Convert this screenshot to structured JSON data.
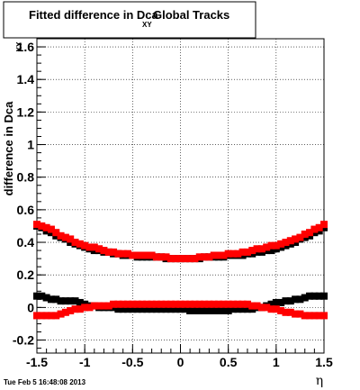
{
  "chart_data": {
    "type": "scatter",
    "title": {
      "main": "Fitted difference in Dca",
      "subscript": "XY",
      "suffix": "Global Tracks"
    },
    "xlabel": "η",
    "ylabel": {
      "main": "difference in Dca",
      "subscript": "XY"
    },
    "xlim": [
      -1.5,
      1.5
    ],
    "ylim": [
      -0.28,
      1.65
    ],
    "x_ticks": [
      "-1.5",
      "-1",
      "-0.5",
      "0",
      "0.5",
      "1",
      "1.5"
    ],
    "x_tick_values": [
      -1.5,
      -1,
      -0.5,
      0,
      0.5,
      1,
      1.5
    ],
    "y_ticks": [
      "-0.2",
      "0",
      "0.2",
      "0.4",
      "0.6",
      "0.8",
      "1",
      "1.2",
      "1.4",
      "1.6"
    ],
    "y_tick_values": [
      -0.2,
      0,
      0.2,
      0.4,
      0.6,
      0.8,
      1,
      1.2,
      1.4,
      1.6
    ],
    "grid": true,
    "footer": "Tue Feb  5 16:48:08 2013",
    "colors": {
      "black_series": "#000000",
      "red_series": "#ff0000",
      "frame": "#000000"
    },
    "series": [
      {
        "color": "black",
        "x": [
          -1.5,
          -1.45,
          -1.4,
          -1.35,
          -1.3,
          -1.25,
          -1.2,
          -1.15,
          -1.1,
          -1.05,
          -1.0,
          -0.95,
          -0.9,
          -0.85,
          -0.8,
          -0.75,
          -0.7,
          -0.65,
          -0.6,
          -0.55,
          -0.5,
          -0.45,
          -0.4,
          -0.35,
          -0.3,
          -0.25,
          -0.2,
          -0.15,
          -0.1,
          -0.05,
          0.0,
          0.05,
          0.1,
          0.15,
          0.2,
          0.25,
          0.3,
          0.35,
          0.4,
          0.45,
          0.5,
          0.55,
          0.6,
          0.65,
          0.7,
          0.75,
          0.8,
          0.85,
          0.9,
          0.95,
          1.0,
          1.05,
          1.1,
          1.15,
          1.2,
          1.25,
          1.3,
          1.35,
          1.4,
          1.45,
          1.5
        ],
        "y": [
          0.5,
          0.49,
          0.47,
          0.46,
          0.44,
          0.43,
          0.42,
          0.4,
          0.39,
          0.38,
          0.37,
          0.36,
          0.35,
          0.35,
          0.34,
          0.34,
          0.33,
          0.33,
          0.32,
          0.32,
          0.32,
          0.31,
          0.31,
          0.31,
          0.31,
          0.31,
          0.31,
          0.3,
          0.3,
          0.3,
          0.3,
          0.3,
          0.3,
          0.3,
          0.3,
          0.31,
          0.31,
          0.31,
          0.31,
          0.31,
          0.32,
          0.32,
          0.32,
          0.32,
          0.33,
          0.33,
          0.34,
          0.34,
          0.35,
          0.35,
          0.36,
          0.37,
          0.38,
          0.39,
          0.4,
          0.42,
          0.43,
          0.44,
          0.46,
          0.47,
          0.49
        ]
      },
      {
        "color": "black",
        "x": [
          -1.5,
          -1.45,
          -1.4,
          -1.35,
          -1.3,
          -1.25,
          -1.2,
          -1.15,
          -1.1,
          -1.05,
          -1.0,
          -0.95,
          -0.9,
          -0.85,
          -0.8,
          -0.75,
          -0.7,
          -0.65,
          -0.6,
          -0.55,
          -0.5,
          -0.45,
          -0.4,
          -0.35,
          -0.3,
          -0.25,
          -0.2,
          -0.15,
          -0.1,
          -0.05,
          0.0,
          0.05,
          0.1,
          0.15,
          0.2,
          0.25,
          0.3,
          0.35,
          0.4,
          0.45,
          0.5,
          0.55,
          0.6,
          0.65,
          0.7,
          0.75,
          0.8,
          0.85,
          0.9,
          0.95,
          1.0,
          1.05,
          1.1,
          1.15,
          1.2,
          1.25,
          1.3,
          1.35,
          1.4,
          1.45,
          1.5
        ],
        "y": [
          0.07,
          0.07,
          0.06,
          0.05,
          0.05,
          0.04,
          0.04,
          0.04,
          0.04,
          0.03,
          0.02,
          0.01,
          0.01,
          0.0,
          0.0,
          0.0,
          0.0,
          -0.01,
          -0.01,
          -0.01,
          -0.01,
          -0.01,
          -0.01,
          -0.01,
          -0.01,
          -0.01,
          -0.01,
          -0.01,
          -0.01,
          -0.01,
          -0.01,
          -0.01,
          -0.02,
          -0.02,
          -0.02,
          -0.02,
          -0.02,
          -0.02,
          -0.02,
          -0.02,
          -0.02,
          -0.01,
          -0.01,
          -0.01,
          -0.01,
          -0.01,
          0.0,
          0.0,
          0.01,
          0.02,
          0.03,
          0.03,
          0.04,
          0.04,
          0.05,
          0.05,
          0.06,
          0.07,
          0.07,
          0.07,
          0.07
        ]
      },
      {
        "color": "red",
        "x": [
          -1.5,
          -1.45,
          -1.4,
          -1.35,
          -1.3,
          -1.25,
          -1.2,
          -1.15,
          -1.1,
          -1.05,
          -1.0,
          -0.95,
          -0.9,
          -0.85,
          -0.8,
          -0.75,
          -0.7,
          -0.65,
          -0.6,
          -0.55,
          -0.5,
          -0.45,
          -0.4,
          -0.35,
          -0.3,
          -0.25,
          -0.2,
          -0.15,
          -0.1,
          -0.05,
          0.0,
          0.05,
          0.1,
          0.15,
          0.2,
          0.25,
          0.3,
          0.35,
          0.4,
          0.45,
          0.5,
          0.55,
          0.6,
          0.65,
          0.7,
          0.75,
          0.8,
          0.85,
          0.9,
          0.95,
          1.0,
          1.05,
          1.1,
          1.15,
          1.2,
          1.25,
          1.3,
          1.35,
          1.4,
          1.45,
          1.5
        ],
        "y": [
          0.51,
          0.5,
          0.49,
          0.48,
          0.46,
          0.44,
          0.43,
          0.42,
          0.4,
          0.39,
          0.38,
          0.37,
          0.37,
          0.36,
          0.35,
          0.34,
          0.34,
          0.33,
          0.33,
          0.33,
          0.32,
          0.32,
          0.32,
          0.32,
          0.32,
          0.31,
          0.31,
          0.31,
          0.3,
          0.3,
          0.3,
          0.3,
          0.3,
          0.3,
          0.31,
          0.31,
          0.31,
          0.32,
          0.32,
          0.32,
          0.33,
          0.33,
          0.33,
          0.34,
          0.34,
          0.35,
          0.36,
          0.36,
          0.37,
          0.38,
          0.38,
          0.39,
          0.4,
          0.41,
          0.42,
          0.43,
          0.45,
          0.46,
          0.48,
          0.49,
          0.51
        ]
      },
      {
        "color": "red",
        "x": [
          -1.5,
          -1.45,
          -1.4,
          -1.35,
          -1.3,
          -1.25,
          -1.2,
          -1.15,
          -1.1,
          -1.05,
          -1.0,
          -0.95,
          -0.9,
          -0.85,
          -0.8,
          -0.75,
          -0.7,
          -0.65,
          -0.6,
          -0.55,
          -0.5,
          -0.45,
          -0.4,
          -0.35,
          -0.3,
          -0.25,
          -0.2,
          -0.15,
          -0.1,
          -0.05,
          0.0,
          0.05,
          0.1,
          0.15,
          0.2,
          0.25,
          0.3,
          0.35,
          0.4,
          0.45,
          0.5,
          0.55,
          0.6,
          0.65,
          0.7,
          0.75,
          0.8,
          0.85,
          0.9,
          0.95,
          1.0,
          1.05,
          1.1,
          1.15,
          1.2,
          1.25,
          1.3,
          1.35,
          1.4,
          1.45,
          1.5
        ],
        "y": [
          -0.05,
          -0.05,
          -0.05,
          -0.05,
          -0.05,
          -0.04,
          -0.03,
          -0.02,
          -0.01,
          -0.01,
          0.0,
          0.0,
          0.01,
          0.01,
          0.01,
          0.01,
          0.02,
          0.02,
          0.02,
          0.02,
          0.02,
          0.02,
          0.02,
          0.02,
          0.02,
          0.02,
          0.02,
          0.02,
          0.02,
          0.02,
          0.02,
          0.02,
          0.02,
          0.02,
          0.02,
          0.02,
          0.02,
          0.02,
          0.02,
          0.02,
          0.02,
          0.02,
          0.02,
          0.02,
          0.02,
          0.01,
          0.01,
          0.0,
          0.0,
          -0.01,
          -0.01,
          -0.02,
          -0.03,
          -0.03,
          -0.04,
          -0.04,
          -0.05,
          -0.05,
          -0.05,
          -0.05,
          -0.05
        ]
      }
    ]
  }
}
